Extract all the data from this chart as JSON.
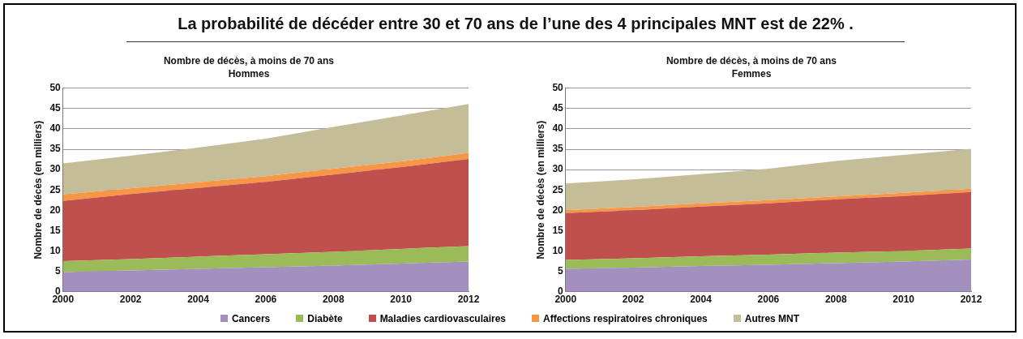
{
  "chart_data": [
    {
      "type": "area",
      "title": "Nombre de décès, à moins de 70 ans",
      "subtitle": "Hommes",
      "ylabel": "Nombre de décès (en milliers)",
      "annotations": [
        "La probabilité de décéder entre 30 et 70 ans de l’une des 4 principales MNT est de 22% ."
      ],
      "x": [
        2000,
        2002,
        2004,
        2006,
        2008,
        2010,
        2012
      ],
      "xlim": [
        2000,
        2012
      ],
      "xticks": [
        2000,
        2002,
        2004,
        2006,
        2008,
        2010,
        2012
      ],
      "ylim": [
        0,
        50
      ],
      "yticks": [
        0,
        5,
        10,
        15,
        20,
        25,
        30,
        35,
        40,
        45,
        50
      ],
      "stacked": true,
      "grid": "y",
      "legend": "bottom",
      "series": [
        {
          "name": "Cancers",
          "color": "#a390bf",
          "values": [
            4.8,
            5.2,
            5.6,
            6.0,
            6.4,
            6.9,
            7.4
          ]
        },
        {
          "name": "Diabète",
          "color": "#9bbb59",
          "values": [
            2.7,
            2.8,
            3.0,
            3.2,
            3.4,
            3.6,
            3.8
          ]
        },
        {
          "name": "Maladies cardiovasculaires",
          "color": "#c0504d",
          "values": [
            14.8,
            16.0,
            16.9,
            17.8,
            19.0,
            20.1,
            21.4
          ]
        },
        {
          "name": "Affections respiratoires chroniques",
          "color": "#f79646",
          "values": [
            1.6,
            1.4,
            1.4,
            1.4,
            1.4,
            1.4,
            1.5
          ]
        },
        {
          "name": "Autres MNT",
          "color": "#c4bd97",
          "values": [
            7.6,
            8.0,
            8.5,
            9.2,
            10.3,
            11.3,
            12.0
          ]
        }
      ]
    },
    {
      "type": "area",
      "title": "Nombre de décès, à moins de 70 ans",
      "subtitle": "Femmes",
      "ylabel": "Nombre de décès (en milliers)",
      "x": [
        2000,
        2002,
        2004,
        2006,
        2008,
        2010,
        2012
      ],
      "xlim": [
        2000,
        2012
      ],
      "xticks": [
        2000,
        2002,
        2004,
        2006,
        2008,
        2010,
        2012
      ],
      "ylim": [
        0,
        50
      ],
      "yticks": [
        0,
        5,
        10,
        15,
        20,
        25,
        30,
        35,
        40,
        45,
        50
      ],
      "stacked": true,
      "grid": "y",
      "series": [
        {
          "color": "#a390bf",
          "values": [
            5.6,
            5.9,
            6.3,
            6.6,
            7.0,
            7.4,
            7.9
          ]
        },
        {
          "color": "#9bbb59",
          "values": [
            2.2,
            2.3,
            2.4,
            2.5,
            2.6,
            2.6,
            2.7
          ]
        },
        {
          "color": "#c0504d",
          "values": [
            11.5,
            11.8,
            12.2,
            12.6,
            13.1,
            13.5,
            13.9
          ]
        },
        {
          "color": "#f79646",
          "values": [
            0.7,
            0.8,
            0.8,
            0.8,
            0.7,
            0.8,
            0.8
          ]
        },
        {
          "color": "#c4bd97",
          "values": [
            6.6,
            6.8,
            7.2,
            7.7,
            8.7,
            9.3,
            9.8
          ]
        }
      ]
    }
  ]
}
